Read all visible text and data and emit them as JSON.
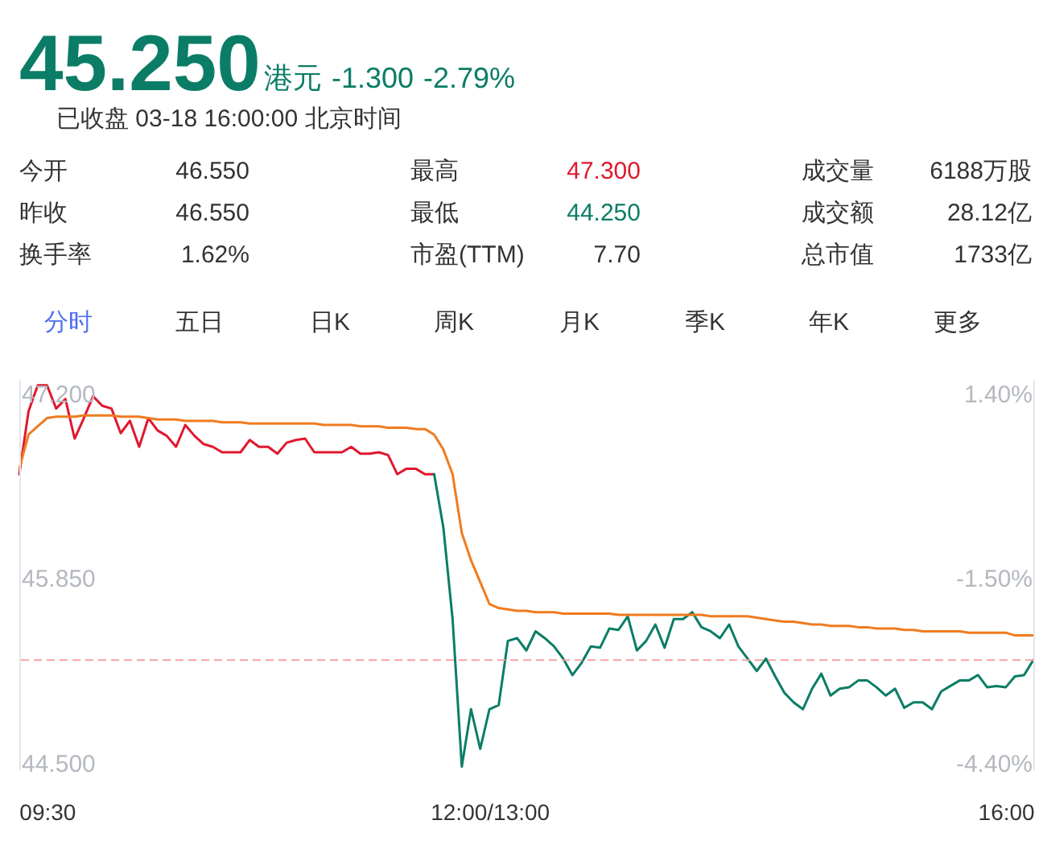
{
  "chart_data": [
    {
      "type": "other",
      "title": "45.250",
      "subtitle": "已收盘 03-18 16:00:00 北京时间",
      "annotations": [
        "港元",
        "-1.300",
        "-2.79%",
        "今开",
        "46.550",
        "最高",
        "47.300",
        "成交量",
        "6188万股",
        "昨收",
        "46.550",
        "最低",
        "44.250",
        "成交额",
        "28.12亿",
        "换手率",
        "1.62%",
        "市盈(TTM)",
        "7.70",
        "总市值",
        "1733亿",
        "分时",
        "五日",
        "日K",
        "周K",
        "月K",
        "季K",
        "年K",
        "更多"
      ]
    },
    {
      "type": "line",
      "categories": [
        null,
        null,
        null,
        "09:30",
        null,
        null,
        null,
        null,
        null,
        null,
        null,
        null,
        null,
        null,
        null,
        null,
        null,
        null,
        null,
        null,
        null,
        null,
        null,
        null,
        null,
        null,
        null,
        null,
        null,
        null,
        null,
        null,
        null,
        null,
        null,
        null,
        null,
        null,
        null,
        null,
        null,
        null,
        null,
        null,
        null,
        null,
        null,
        null,
        null,
        null,
        null,
        "12:00/13:00",
        null,
        null,
        null,
        null,
        null,
        null,
        null,
        null,
        null,
        null,
        null,
        null,
        null,
        null,
        null,
        null,
        null,
        null,
        null,
        null,
        null,
        null,
        null,
        null,
        null,
        null,
        null,
        null,
        null,
        null,
        null,
        null,
        null,
        null,
        null,
        null,
        null,
        null,
        null,
        null,
        null,
        null,
        null,
        null,
        null,
        null,
        null,
        null,
        null,
        null,
        null,
        null,
        null,
        null,
        null,
        "16:00",
        null,
        null,
        null
      ],
      "ylim": [
        44.45,
        47.3
      ],
      "yticks": [
        {
          "value": 47.2,
          "label": "47.200"
        },
        {
          "value": 45.85,
          "label": "45.850"
        },
        {
          "value": 44.5,
          "label": "44.500"
        }
      ],
      "y2lim": [
        -4.507,
        1.615
      ],
      "y2ticks": [
        {
          "value": 1.4,
          "label": "1.40%"
        },
        {
          "value": -1.5,
          "label": "-1.50%"
        },
        {
          "value": -4.4,
          "label": "-4.40%"
        }
      ],
      "grid": false,
      "ref_lines": [
        {
          "axis": "y",
          "value": 45.25,
          "color": "#f5a3a3",
          "line_style": "dashed"
        }
      ],
      "series": [
        {
          "color": "#e0182d",
          "values": [
            46.61,
            47.07,
            47.26,
            47.26,
            47.09,
            47.16,
            46.87,
            47.02,
            47.18,
            47.11,
            47.09,
            46.91,
            47.0,
            46.81,
            47.02,
            46.93,
            46.89,
            46.81,
            46.97,
            46.89,
            46.83,
            46.81,
            46.77,
            46.77,
            46.77,
            46.86,
            46.81,
            46.81,
            46.76,
            46.84,
            46.86,
            46.87,
            46.77,
            46.77,
            46.77,
            46.77,
            46.81,
            46.76,
            46.76,
            46.77,
            46.75,
            46.61,
            46.65,
            46.65,
            46.61,
            46.61,
            null,
            null,
            null,
            null,
            null,
            null,
            null,
            null,
            null,
            null,
            null,
            null,
            null,
            null,
            null,
            null,
            null,
            null,
            null,
            null,
            null,
            null,
            null,
            null,
            null,
            null,
            null,
            null,
            null,
            null,
            null,
            null,
            null,
            null,
            null,
            null,
            null,
            null,
            null,
            null,
            null,
            null,
            null,
            null,
            null,
            null,
            null,
            null,
            null,
            null,
            null,
            null,
            null,
            null,
            null,
            null,
            null,
            null,
            null,
            null,
            null,
            null,
            null,
            null,
            null
          ]
        },
        {
          "color": "#0b7d66",
          "values": [
            null,
            null,
            null,
            null,
            null,
            null,
            null,
            null,
            null,
            null,
            null,
            null,
            null,
            null,
            null,
            null,
            null,
            null,
            null,
            null,
            null,
            null,
            null,
            null,
            null,
            null,
            null,
            null,
            null,
            null,
            null,
            null,
            null,
            null,
            null,
            null,
            null,
            null,
            null,
            null,
            null,
            null,
            null,
            null,
            null,
            46.61,
            46.22,
            45.55,
            44.47,
            44.89,
            44.6,
            44.89,
            44.92,
            45.39,
            45.41,
            45.32,
            45.46,
            45.41,
            45.35,
            45.26,
            45.14,
            45.23,
            45.35,
            45.34,
            45.48,
            45.47,
            45.57,
            45.32,
            45.39,
            45.51,
            45.34,
            45.55,
            45.55,
            45.6,
            45.49,
            45.46,
            45.41,
            45.51,
            45.35,
            45.26,
            45.17,
            45.26,
            45.13,
            45.01,
            44.94,
            44.89,
            45.04,
            45.15,
            44.99,
            45.04,
            45.05,
            45.1,
            45.1,
            45.05,
            44.99,
            45.04,
            44.9,
            44.94,
            44.94,
            44.89,
            45.02,
            45.06,
            45.1,
            45.1,
            45.14,
            45.05,
            45.06,
            45.05,
            45.13,
            45.14,
            45.25
          ]
        },
        {
          "color": "#f07b1f",
          "values": [
            46.65,
            46.9,
            46.96,
            47.02,
            47.03,
            47.03,
            47.03,
            47.04,
            47.04,
            47.04,
            47.04,
            47.03,
            47.03,
            47.03,
            47.02,
            47.01,
            47.01,
            47.01,
            47.0,
            47.0,
            47.0,
            47.0,
            46.99,
            46.99,
            46.99,
            46.98,
            46.98,
            46.98,
            46.98,
            46.98,
            46.98,
            46.98,
            46.98,
            46.97,
            46.97,
            46.97,
            46.97,
            46.96,
            46.96,
            46.96,
            46.95,
            46.95,
            46.95,
            46.94,
            46.94,
            46.9,
            46.79,
            46.61,
            46.18,
            45.98,
            45.82,
            45.66,
            45.63,
            45.62,
            45.61,
            45.61,
            45.6,
            45.6,
            45.6,
            45.59,
            45.59,
            45.59,
            45.59,
            45.59,
            45.59,
            45.58,
            45.58,
            45.58,
            45.58,
            45.58,
            45.58,
            45.58,
            45.58,
            45.58,
            45.58,
            45.57,
            45.57,
            45.57,
            45.57,
            45.57,
            45.56,
            45.55,
            45.54,
            45.53,
            45.53,
            45.52,
            45.51,
            45.51,
            45.5,
            45.5,
            45.5,
            45.49,
            45.49,
            45.48,
            45.48,
            45.48,
            45.47,
            45.47,
            45.46,
            45.46,
            45.46,
            45.46,
            45.46,
            45.45,
            45.45,
            45.45,
            45.45,
            45.45,
            45.43,
            45.43,
            45.43
          ]
        }
      ]
    }
  ]
}
